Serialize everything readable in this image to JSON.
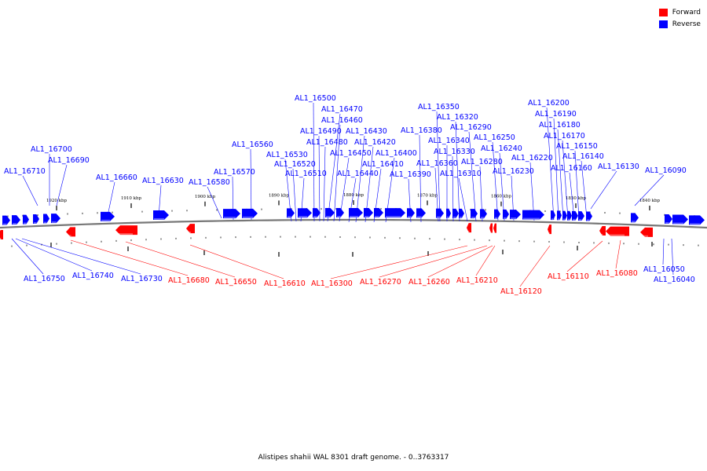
{
  "legend": {
    "items": [
      {
        "label": "Forward",
        "color": "#ff0000"
      },
      {
        "label": "Reverse",
        "color": "#0000ff"
      }
    ]
  },
  "caption": "Alistipes shahii WAL 8301 draft genome. - 0..3763317",
  "colors": {
    "forward": "#ff0000",
    "reverse": "#0000ff",
    "axis": "#777777"
  },
  "ticks": [
    {
      "label": "1920 kbp"
    },
    {
      "label": "1910 kbp"
    },
    {
      "label": "1900 kbp"
    },
    {
      "label": "1890 kbp"
    },
    {
      "label": "1880 kbp"
    },
    {
      "label": "1870 kbp"
    },
    {
      "label": "1860 kbp"
    },
    {
      "label": "1850 kbp"
    },
    {
      "label": "1840 kbp"
    }
  ],
  "genes_top": [
    "AL1_16710",
    "AL1_16700",
    "AL1_16690",
    "AL1_16660",
    "AL1_16630",
    "AL1_16580",
    "AL1_16570",
    "AL1_16560",
    "AL1_16530",
    "AL1_16520",
    "AL1_16510",
    "AL1_16500",
    "AL1_16490",
    "AL1_16480",
    "AL1_16470",
    "AL1_16460",
    "AL1_16450",
    "AL1_16440",
    "AL1_16430",
    "AL1_16420",
    "AL1_16410",
    "AL1_16400",
    "AL1_16390",
    "AL1_16380",
    "AL1_16360",
    "AL1_16350",
    "AL1_16340",
    "AL1_16330",
    "AL1_16320",
    "AL1_16310",
    "AL1_16290",
    "AL1_16280",
    "AL1_16250",
    "AL1_16240",
    "AL1_16230",
    "AL1_16220",
    "AL1_16200",
    "AL1_16190",
    "AL1_16180",
    "AL1_16170",
    "AL1_16160",
    "AL1_16150",
    "AL1_16140",
    "AL1_16130",
    "AL1_16090"
  ],
  "genes_bottom": [
    "AL1_16750",
    "AL1_16740",
    "AL1_16730",
    "AL1_16680",
    "AL1_16650",
    "AL1_16610",
    "AL1_16300",
    "AL1_16270",
    "AL1_16260",
    "AL1_16210",
    "AL1_16120",
    "AL1_16110",
    "AL1_16080",
    "AL1_16050",
    "AL1_16040"
  ]
}
